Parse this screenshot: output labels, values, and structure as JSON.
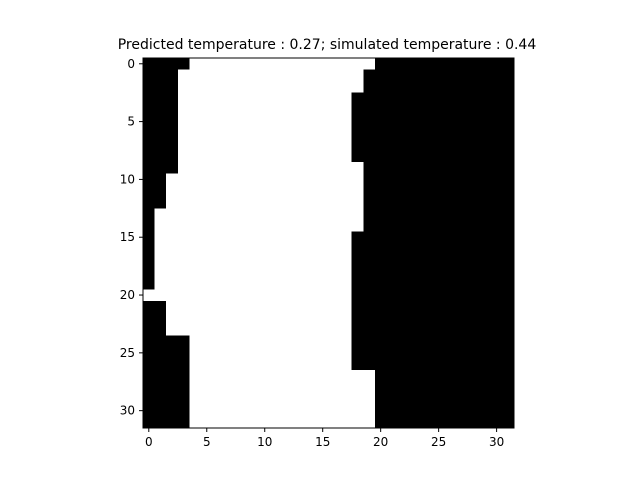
{
  "chart_data": {
    "type": "heatmap",
    "title": "Predicted temperature : 0.27; simulated temperature : 0.44",
    "xlabel": "",
    "ylabel": "",
    "colormap": "gray",
    "value_colors": {
      "0": "#000000",
      "1": "#ffffff"
    },
    "grid": false,
    "rows": 32,
    "cols": 32,
    "x_ticks": [
      0,
      5,
      10,
      15,
      20,
      25,
      30
    ],
    "y_ticks": [
      0,
      5,
      10,
      15,
      20,
      25,
      30
    ],
    "xlim": [
      -0.5,
      31.5
    ],
    "ylim": [
      31.5,
      -0.5
    ],
    "row_white_intervals": [
      [
        4,
        19
      ],
      [
        3,
        18
      ],
      [
        3,
        18
      ],
      [
        3,
        17
      ],
      [
        3,
        17
      ],
      [
        3,
        17
      ],
      [
        3,
        17
      ],
      [
        3,
        17
      ],
      [
        3,
        17
      ],
      [
        3,
        18
      ],
      [
        2,
        18
      ],
      [
        2,
        18
      ],
      [
        2,
        18
      ],
      [
        1,
        18
      ],
      [
        1,
        18
      ],
      [
        1,
        17
      ],
      [
        1,
        17
      ],
      [
        1,
        17
      ],
      [
        1,
        17
      ],
      [
        1,
        17
      ],
      [
        0,
        17
      ],
      [
        2,
        17
      ],
      [
        2,
        17
      ],
      [
        2,
        17
      ],
      [
        4,
        17
      ],
      [
        4,
        17
      ],
      [
        4,
        17
      ],
      [
        4,
        19
      ],
      [
        4,
        19
      ],
      [
        4,
        19
      ],
      [
        4,
        19
      ],
      [
        4,
        19
      ]
    ]
  }
}
